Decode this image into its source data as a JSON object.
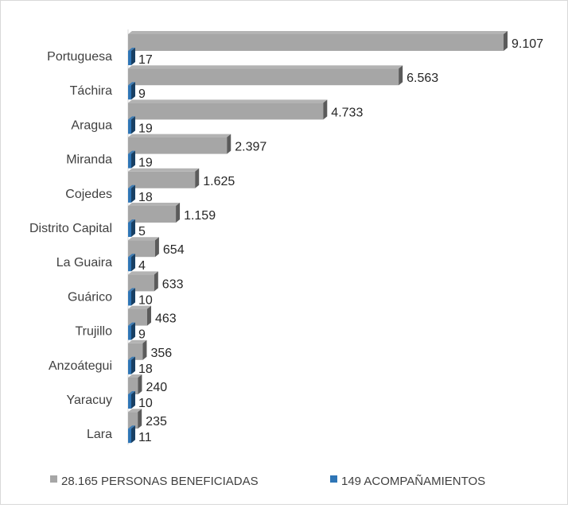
{
  "chart_data": {
    "type": "bar",
    "orientation": "horizontal",
    "style": "3d",
    "categories": [
      "Portuguesa",
      "Táchira",
      "Aragua",
      "Miranda",
      "Cojedes",
      "Distrito Capital",
      "La Guaira",
      "Guárico",
      "Trujillo",
      "Anzoátegui",
      "Yaracuy",
      "Lara"
    ],
    "series": [
      {
        "name": "28.165 PERSONAS BENEFICIADAS",
        "color": "#a6a6a6",
        "values": [
          9107,
          6563,
          4733,
          2397,
          1625,
          1159,
          654,
          633,
          463,
          356,
          240,
          235
        ],
        "labels": [
          "9.107",
          "6.563",
          "4.733",
          "2.397",
          "1.625",
          "1.159",
          "654",
          "633",
          "463",
          "356",
          "240",
          "235"
        ]
      },
      {
        "name": "149 ACOMPAÑAMIENTOS",
        "color": "#2e75b6",
        "values": [
          17,
          9,
          19,
          19,
          18,
          5,
          4,
          10,
          9,
          18,
          10,
          11
        ],
        "labels": [
          "17",
          "9",
          "19",
          "19",
          "18",
          "5",
          "4",
          "10",
          "9",
          "18",
          "10",
          "11"
        ]
      }
    ],
    "xlim": [
      0,
      10000
    ],
    "grid": false,
    "legend_position": "bottom"
  }
}
